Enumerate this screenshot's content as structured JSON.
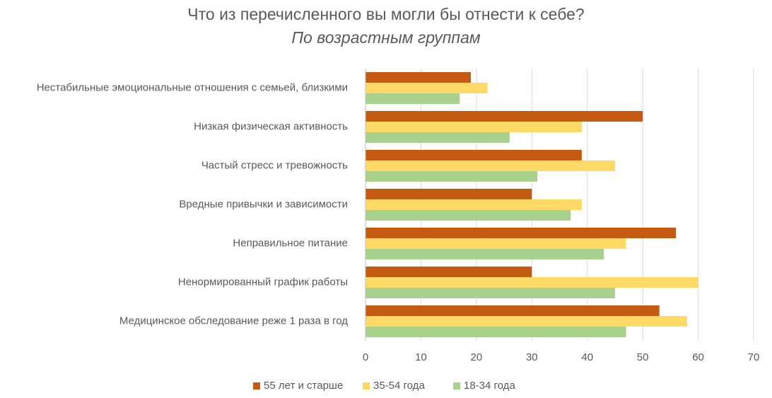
{
  "chart_data": {
    "type": "bar",
    "orientation": "horizontal",
    "title": "Что из перечисленного вы могли бы отнести к себе?",
    "subtitle": "По возрастным группам",
    "categories": [
      "Нестабильные эмоциональные отношения с семьей, близкими",
      "Низкая физическая активность",
      "Частый стресс и тревожность",
      "Вредные привычки и зависимости",
      "Неправильное питание",
      "Ненормированный график работы",
      "Медицинское обследование реже 1 раза в год"
    ],
    "series": [
      {
        "name": "55 лет и старше",
        "color": "#c55a11",
        "values": [
          19,
          50,
          39,
          30,
          56,
          30,
          53
        ]
      },
      {
        "name": "35-54 года",
        "color": "#ffd966",
        "values": [
          22,
          39,
          45,
          39,
          47,
          60,
          58
        ]
      },
      {
        "name": "18-34 года",
        "color": "#a9d18e",
        "values": [
          17,
          26,
          31,
          37,
          43,
          45,
          47
        ]
      }
    ],
    "xlim": [
      0,
      70
    ],
    "xticks": [
      0,
      10,
      20,
      30,
      40,
      50,
      60,
      70
    ],
    "grid": true,
    "legend": "bottom"
  }
}
